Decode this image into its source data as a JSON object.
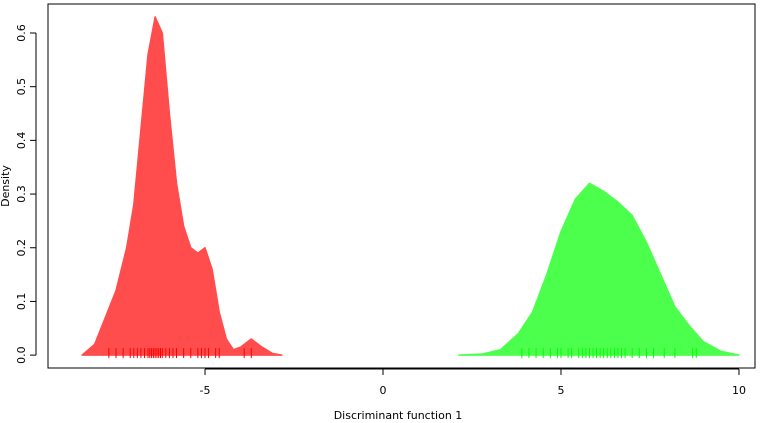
{
  "chart_data": {
    "type": "density",
    "x_label": "Discriminant function 1",
    "y_label": "Density",
    "xlim": [
      -9.41,
      10.45
    ],
    "ylim": [
      -0.024,
      0.654
    ],
    "xticks": [
      -5,
      0,
      5,
      10
    ],
    "yticks": [
      {
        "value": 0,
        "label": "0.0"
      },
      0.1,
      0.2,
      0.3,
      0.4,
      0.5,
      0.6
    ],
    "series": [
      {
        "color": "#ff4d4d",
        "rug_color": "#ff0000",
        "x": [
          -8.45,
          -8.1,
          -7.8,
          -7.5,
          -7.2,
          -7.0,
          -6.8,
          -6.6,
          -6.4,
          -6.2,
          -6.0,
          -5.8,
          -5.6,
          -5.4,
          -5.2,
          -5.0,
          -4.8,
          -4.6,
          -4.4,
          -4.2,
          -4.0,
          -3.7,
          -3.4,
          -3.1,
          -2.84
        ],
        "values": [
          0,
          0.02,
          0.07,
          0.12,
          0.2,
          0.28,
          0.42,
          0.56,
          0.63,
          0.6,
          0.45,
          0.32,
          0.24,
          0.2,
          0.19,
          0.2,
          0.16,
          0.08,
          0.03,
          0.01,
          0.015,
          0.03,
          0.015,
          0.003,
          0
        ],
        "rug": [
          -7.7,
          -7.5,
          -7.3,
          -7.1,
          -7.0,
          -6.9,
          -6.8,
          -6.7,
          -6.6,
          -6.55,
          -6.5,
          -6.45,
          -6.4,
          -6.35,
          -6.3,
          -6.25,
          -6.2,
          -6.1,
          -6.0,
          -5.9,
          -5.8,
          -5.6,
          -5.4,
          -5.2,
          -5.1,
          -5.0,
          -4.9,
          -4.7,
          -4.6,
          -3.9,
          -3.7
        ]
      },
      {
        "color": "#4dff4d",
        "rug_color": "#00ff00",
        "x": [
          2.13,
          2.8,
          3.3,
          3.8,
          4.2,
          4.6,
          5.0,
          5.4,
          5.8,
          6.2,
          6.6,
          7.0,
          7.4,
          7.8,
          8.2,
          8.6,
          9.0,
          9.5,
          10.0
        ],
        "values": [
          0,
          0.002,
          0.01,
          0.04,
          0.08,
          0.15,
          0.23,
          0.29,
          0.32,
          0.305,
          0.285,
          0.26,
          0.21,
          0.15,
          0.09,
          0.055,
          0.025,
          0.007,
          0
        ],
        "rug": [
          3.9,
          4.1,
          4.3,
          4.5,
          4.7,
          4.9,
          5.0,
          5.2,
          5.3,
          5.5,
          5.6,
          5.7,
          5.8,
          5.9,
          6.0,
          6.1,
          6.2,
          6.3,
          6.4,
          6.5,
          6.6,
          6.7,
          6.8,
          7.0,
          7.2,
          7.4,
          7.6,
          7.9,
          8.2,
          8.7,
          8.8
        ]
      }
    ]
  }
}
